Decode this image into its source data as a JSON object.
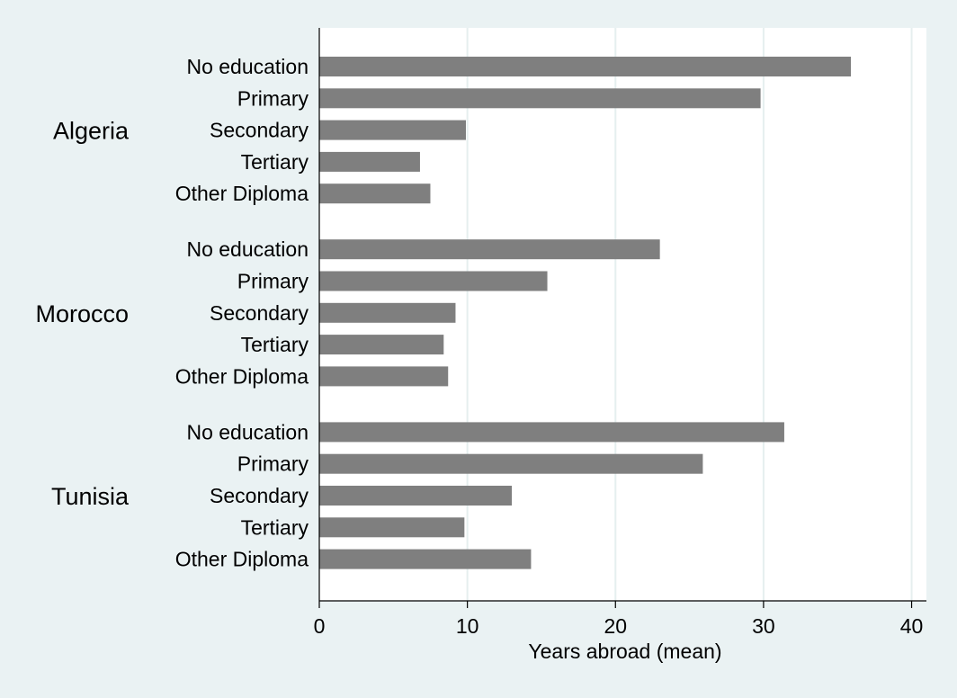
{
  "chart_data": {
    "type": "bar",
    "orientation": "horizontal",
    "xlabel": "Years abroad (mean)",
    "xlim": [
      0,
      41
    ],
    "xticks": [
      0,
      10,
      20,
      30,
      40
    ],
    "grid": true,
    "groups": [
      {
        "name": "Algeria",
        "categories": [
          "No education",
          "Primary",
          "Secondary",
          "Tertiary",
          "Other Diploma"
        ],
        "values": [
          35.9,
          29.8,
          9.9,
          6.8,
          7.5
        ]
      },
      {
        "name": "Morocco",
        "categories": [
          "No education",
          "Primary",
          "Secondary",
          "Tertiary",
          "Other Diploma"
        ],
        "values": [
          23.0,
          15.4,
          9.2,
          8.4,
          8.7
        ]
      },
      {
        "name": "Tunisia",
        "categories": [
          "No education",
          "Primary",
          "Secondary",
          "Tertiary",
          "Other Diploma"
        ],
        "values": [
          31.4,
          25.9,
          13.0,
          9.8,
          14.3
        ]
      }
    ]
  },
  "colors": {
    "page_background": "#eaf2f3",
    "plot_background": "#ffffff",
    "bar": "#7f7f7f",
    "gridline": "#e6efef",
    "axis": "#000000"
  }
}
